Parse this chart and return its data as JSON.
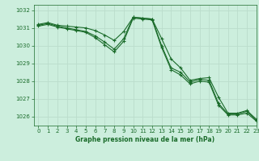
{
  "title": "Graphe pression niveau de la mer (hPa)",
  "background_color": "#cceedd",
  "grid_color": "#bbddcc",
  "line_color": "#1a6b2a",
  "xlim": [
    -0.5,
    23
  ],
  "ylim": [
    1025.5,
    1032.3
  ],
  "yticks": [
    1026,
    1027,
    1028,
    1029,
    1030,
    1031,
    1032
  ],
  "xticks": [
    0,
    1,
    2,
    3,
    4,
    5,
    6,
    7,
    8,
    9,
    10,
    11,
    12,
    13,
    14,
    15,
    16,
    17,
    18,
    19,
    20,
    21,
    22,
    23
  ],
  "series": [
    [
      1031.2,
      1031.3,
      1031.15,
      1031.1,
      1031.05,
      1031.0,
      1030.85,
      1030.6,
      1030.3,
      1030.8,
      1031.6,
      1031.55,
      1031.5,
      1030.4,
      1029.25,
      1028.75,
      1028.05,
      1028.15,
      1028.2,
      1027.1,
      1026.2,
      1026.2,
      1026.35,
      1025.85
    ],
    [
      1031.15,
      1031.25,
      1031.1,
      1031.0,
      1030.9,
      1030.8,
      1030.55,
      1030.2,
      1029.8,
      1030.4,
      1031.6,
      1031.55,
      1031.5,
      1030.0,
      1028.75,
      1028.5,
      1027.95,
      1028.1,
      1028.05,
      1026.75,
      1026.15,
      1026.15,
      1026.3,
      1025.8
    ],
    [
      1031.1,
      1031.2,
      1031.05,
      1030.95,
      1030.85,
      1030.75,
      1030.45,
      1030.05,
      1029.65,
      1030.25,
      1031.55,
      1031.5,
      1031.45,
      1029.9,
      1028.65,
      1028.35,
      1027.85,
      1028.0,
      1027.95,
      1026.65,
      1026.1,
      1026.1,
      1026.2,
      1025.75
    ]
  ]
}
